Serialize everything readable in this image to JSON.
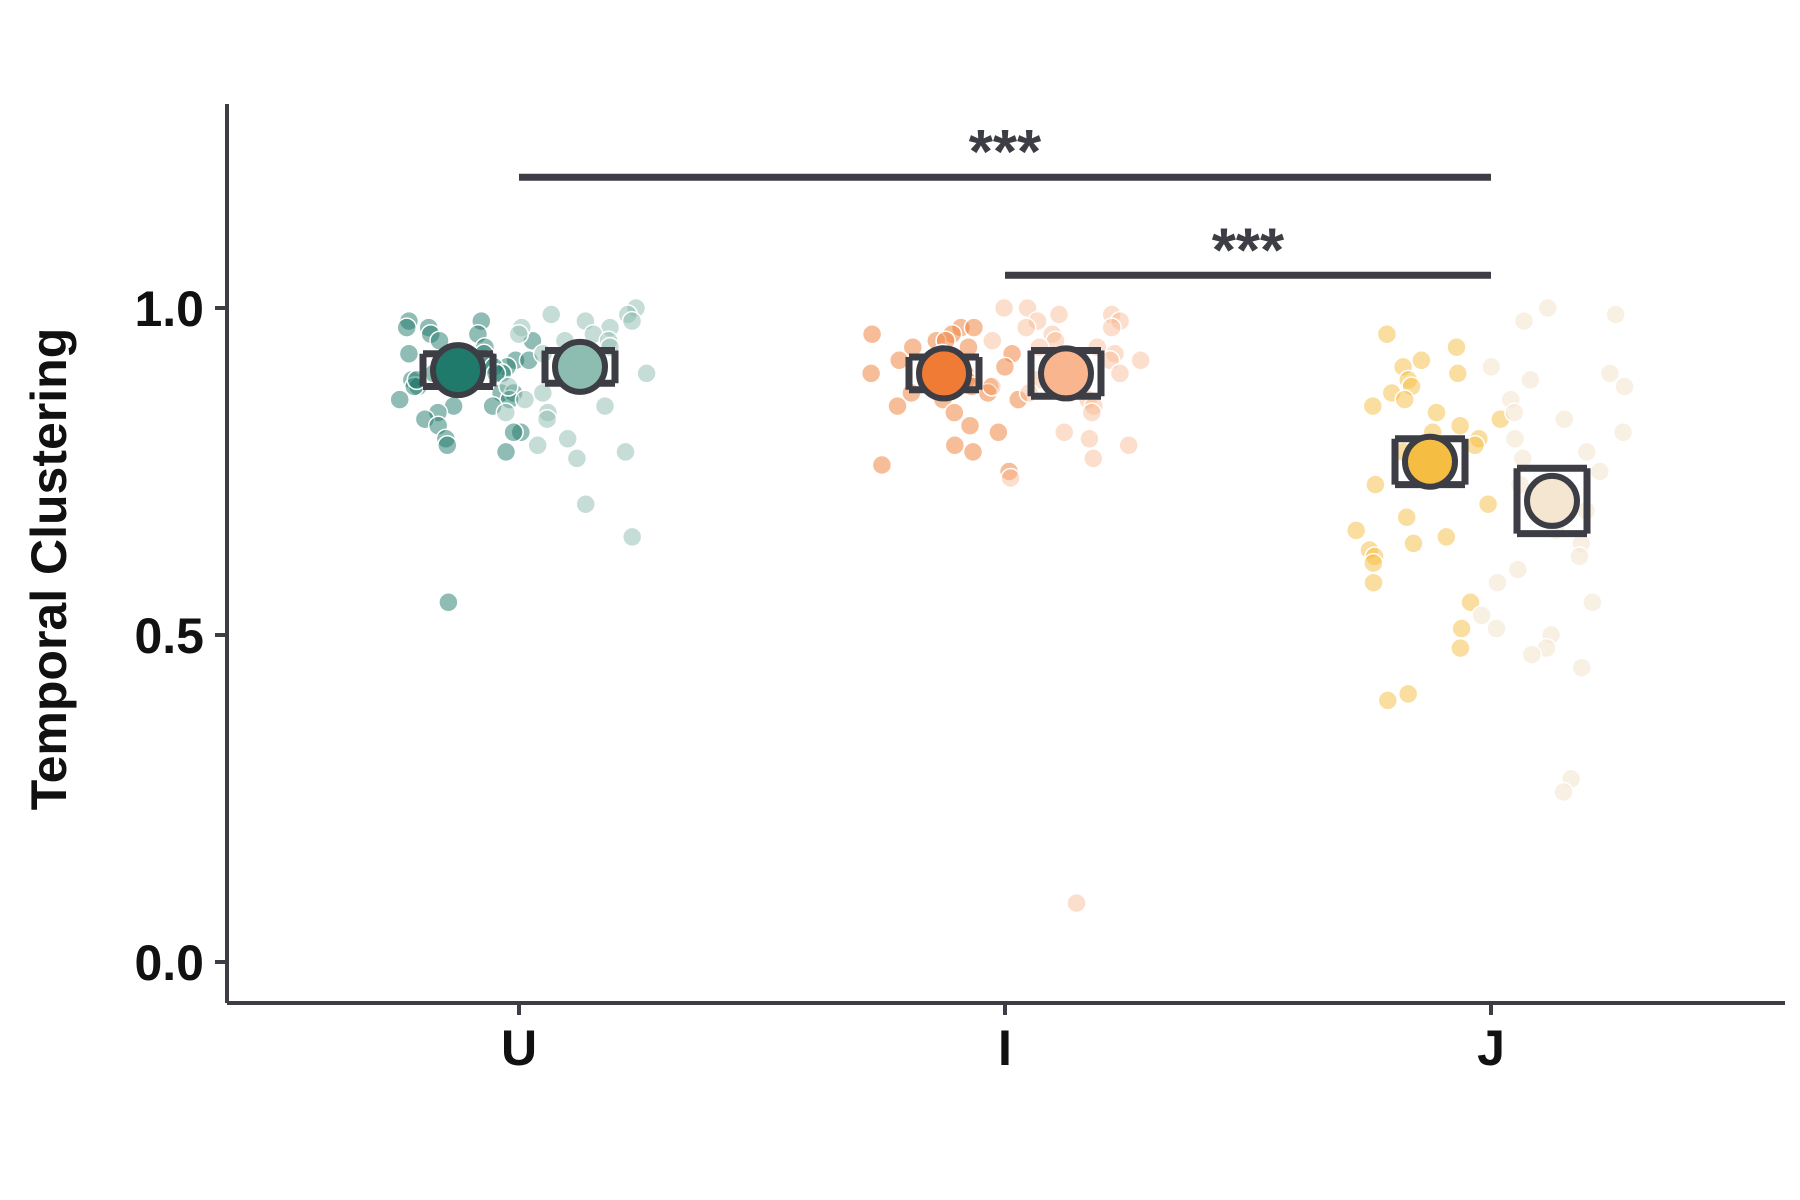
{
  "chart_data": {
    "type": "scatter",
    "subtype": "jittered strip plot with mean and error bars",
    "title": "",
    "xlabel": "",
    "ylabel": "Temporal Clustering",
    "categories": [
      "U",
      "I",
      "J"
    ],
    "ylim": [
      -0.06,
      1.32
    ],
    "yticks": [
      "0.0",
      "0.5",
      "1.0"
    ],
    "grid": false,
    "legend": "none",
    "series": [
      {
        "category": "U",
        "group": 1,
        "color": "#1f7a6b",
        "point_alpha": 0.5,
        "mean": 0.905,
        "err_low": 0.88,
        "err_high": 0.93,
        "values": [
          0.98,
          0.97,
          0.96,
          0.95,
          0.94,
          0.93,
          0.93,
          0.92,
          0.92,
          0.91,
          0.91,
          0.9,
          0.9,
          0.89,
          0.89,
          0.88,
          0.88,
          0.87,
          0.87,
          0.86,
          0.86,
          0.85,
          0.85,
          0.84,
          0.83,
          0.82,
          0.81,
          0.81,
          0.8,
          0.79,
          0.78,
          0.98,
          0.97,
          0.96,
          0.95,
          0.93,
          0.92,
          0.91,
          0.9,
          0.89,
          0.55
        ]
      },
      {
        "category": "U",
        "group": 2,
        "color": "#8dbcb0",
        "point_alpha": 0.5,
        "mean": 0.91,
        "err_low": 0.885,
        "err_high": 0.935,
        "values": [
          1.0,
          0.99,
          0.99,
          0.98,
          0.98,
          0.97,
          0.97,
          0.96,
          0.96,
          0.95,
          0.95,
          0.94,
          0.93,
          0.92,
          0.91,
          0.91,
          0.9,
          0.89,
          0.88,
          0.87,
          0.86,
          0.85,
          0.84,
          0.84,
          0.83,
          0.8,
          0.79,
          0.78,
          0.77,
          0.7,
          0.65
        ]
      },
      {
        "category": "I",
        "group": 1,
        "color": "#f07b34",
        "point_alpha": 0.5,
        "mean": 0.9,
        "err_low": 0.875,
        "err_high": 0.925,
        "values": [
          0.97,
          0.97,
          0.96,
          0.96,
          0.95,
          0.95,
          0.94,
          0.94,
          0.93,
          0.93,
          0.92,
          0.92,
          0.91,
          0.91,
          0.9,
          0.9,
          0.89,
          0.89,
          0.88,
          0.88,
          0.87,
          0.87,
          0.86,
          0.86,
          0.85,
          0.84,
          0.82,
          0.81,
          0.79,
          0.78,
          0.76,
          0.75
        ]
      },
      {
        "category": "I",
        "group": 2,
        "color": "#f9b58e",
        "point_alpha": 0.45,
        "mean": 0.9,
        "err_low": 0.865,
        "err_high": 0.935,
        "values": [
          1.0,
          1.0,
          0.99,
          0.99,
          0.98,
          0.98,
          0.97,
          0.97,
          0.96,
          0.95,
          0.95,
          0.94,
          0.94,
          0.93,
          0.92,
          0.92,
          0.91,
          0.9,
          0.89,
          0.88,
          0.87,
          0.87,
          0.86,
          0.85,
          0.84,
          0.81,
          0.8,
          0.79,
          0.77,
          0.74,
          0.09
        ]
      },
      {
        "category": "J",
        "group": 1,
        "color": "#f5be42",
        "point_alpha": 0.5,
        "mean": 0.765,
        "err_low": 0.73,
        "err_high": 0.8,
        "values": [
          0.96,
          0.94,
          0.92,
          0.91,
          0.9,
          0.89,
          0.88,
          0.87,
          0.86,
          0.85,
          0.84,
          0.83,
          0.82,
          0.81,
          0.8,
          0.79,
          0.78,
          0.77,
          0.75,
          0.73,
          0.7,
          0.68,
          0.66,
          0.65,
          0.64,
          0.63,
          0.62,
          0.61,
          0.58,
          0.55,
          0.51,
          0.48,
          0.41,
          0.4
        ]
      },
      {
        "category": "J",
        "group": 2,
        "color": "#f5e6d2",
        "point_alpha": 0.6,
        "mean": 0.705,
        "err_low": 0.655,
        "err_high": 0.755,
        "values": [
          1.0,
          0.99,
          0.98,
          0.91,
          0.9,
          0.89,
          0.88,
          0.86,
          0.84,
          0.83,
          0.81,
          0.8,
          0.78,
          0.77,
          0.75,
          0.73,
          0.71,
          0.69,
          0.66,
          0.64,
          0.62,
          0.6,
          0.58,
          0.55,
          0.53,
          0.51,
          0.5,
          0.48,
          0.47,
          0.45,
          0.28,
          0.26
        ]
      }
    ],
    "significance": [
      {
        "from": "U",
        "to": "J",
        "y": 1.2,
        "label": "***"
      },
      {
        "from": "I",
        "to": "J",
        "y": 1.05,
        "label": "***"
      }
    ]
  }
}
